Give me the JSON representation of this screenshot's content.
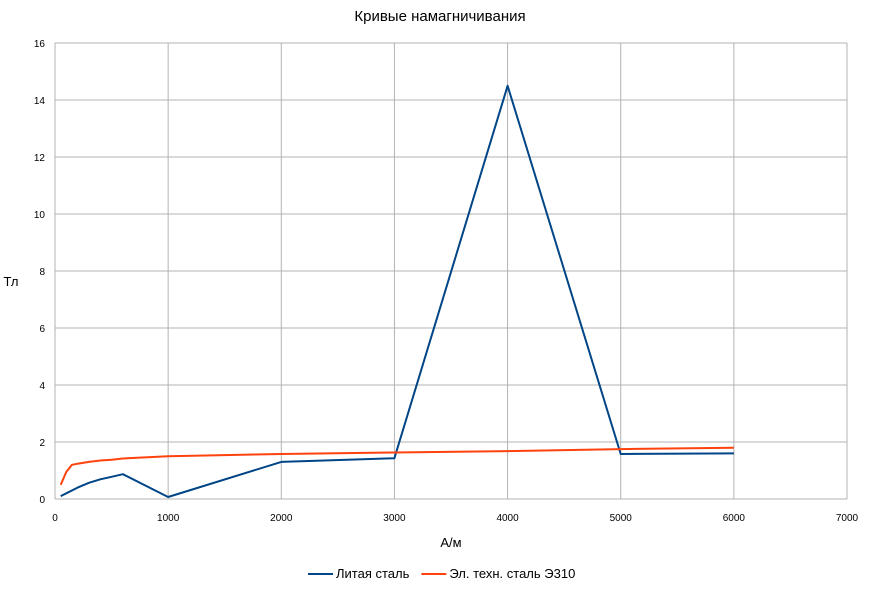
{
  "chart_data": {
    "type": "line",
    "title": "Кривые намагничивания",
    "xlabel": "А/м",
    "ylabel": "Тл",
    "xlim": [
      0,
      7000
    ],
    "ylim": [
      0,
      16
    ],
    "x_ticks": [
      "0",
      "1000",
      "2000",
      "3000",
      "4000",
      "5000",
      "6000",
      "7000"
    ],
    "y_ticks": [
      "0",
      "2",
      "4",
      "6",
      "8",
      "10",
      "12",
      "14",
      "16"
    ],
    "grid": true,
    "legend_position": "bottom",
    "series": [
      {
        "name": "Литая сталь",
        "color": "#004586",
        "points": [
          [
            50,
            0.1
          ],
          [
            100,
            0.2
          ],
          [
            200,
            0.4
          ],
          [
            300,
            0.57
          ],
          [
            400,
            0.69
          ],
          [
            500,
            0.78
          ],
          [
            600,
            0.87
          ],
          [
            1000,
            0.07
          ],
          [
            2000,
            1.3
          ],
          [
            3000,
            1.43
          ],
          [
            4000,
            14.5
          ],
          [
            5000,
            1.58
          ],
          [
            6000,
            1.6
          ]
        ]
      },
      {
        "name": "Эл. техн. сталь Э310",
        "color": "#ff420e",
        "points": [
          [
            50,
            0.5
          ],
          [
            100,
            0.95
          ],
          [
            150,
            1.2
          ],
          [
            200,
            1.24
          ],
          [
            300,
            1.3
          ],
          [
            400,
            1.35
          ],
          [
            500,
            1.38
          ],
          [
            600,
            1.42
          ],
          [
            1000,
            1.5
          ],
          [
            2000,
            1.58
          ],
          [
            3000,
            1.63
          ],
          [
            4000,
            1.68
          ],
          [
            5000,
            1.75
          ],
          [
            6000,
            1.8
          ]
        ]
      }
    ]
  }
}
